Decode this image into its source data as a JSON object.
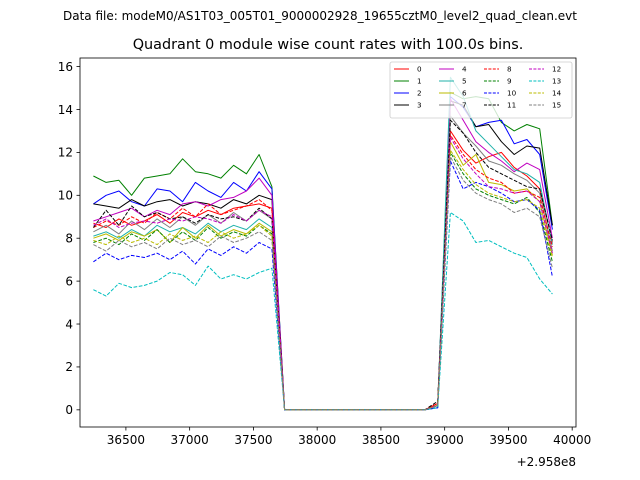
{
  "chart_data": {
    "type": "line",
    "suptitle": "Data file: modeM0/AS1T03_005T01_9000002928_19655cztM0_level2_quad_clean.evt",
    "title": "Quadrant 0 module wise count rates with 100.0s bins.",
    "xlabel": "",
    "ylabel": "",
    "x_offset_label": "+2.958e8",
    "xlim": [
      36140,
      40030
    ],
    "ylim": [
      -0.8,
      16.4
    ],
    "xticks": [
      36500,
      37000,
      37500,
      38000,
      38500,
      39000,
      39500,
      40000
    ],
    "yticks": [
      0,
      2,
      4,
      6,
      8,
      10,
      12,
      14,
      16
    ],
    "grid": false,
    "legend_position": "top-right",
    "x": [
      36245,
      36345,
      36445,
      36545,
      36645,
      36745,
      36845,
      36945,
      37045,
      37145,
      37245,
      37345,
      37445,
      37545,
      37645,
      37745,
      37845,
      37945,
      38045,
      38145,
      38245,
      38345,
      38445,
      38545,
      38645,
      38745,
      38845,
      38945,
      39045,
      39145,
      39245,
      39345,
      39445,
      39545,
      39645,
      39745,
      39845
    ],
    "series": [
      {
        "name": "0",
        "color": "#ff0000",
        "dash": "solid",
        "values": [
          8.7,
          8.5,
          8.9,
          8.6,
          8.8,
          9.1,
          8.7,
          9.2,
          9.0,
          9.3,
          9.1,
          9.4,
          9.5,
          9.6,
          9.4,
          0,
          0,
          0,
          0,
          0,
          0,
          0,
          0,
          0,
          0,
          0,
          0,
          0.3,
          13.0,
          12.1,
          11.5,
          11.8,
          12.0,
          11.3,
          10.9,
          10.3,
          7.8
        ]
      },
      {
        "name": "1",
        "color": "#008000",
        "dash": "solid",
        "values": [
          10.9,
          10.6,
          10.7,
          10.0,
          10.8,
          10.9,
          11.0,
          11.7,
          11.1,
          11.0,
          10.8,
          11.4,
          11.0,
          11.9,
          10.4,
          0,
          0,
          0,
          0,
          0,
          0,
          0,
          0,
          0,
          0,
          0,
          0,
          0.2,
          14.8,
          14.5,
          14.6,
          14.5,
          13.4,
          13.0,
          13.3,
          13.1,
          8.6
        ]
      },
      {
        "name": "2",
        "color": "#0000ff",
        "dash": "solid",
        "values": [
          9.6,
          10.0,
          10.2,
          9.7,
          9.5,
          10.3,
          10.2,
          9.7,
          10.6,
          10.2,
          9.9,
          10.6,
          10.2,
          11.1,
          10.3,
          0,
          0,
          0,
          0,
          0,
          0,
          0,
          0,
          0,
          0,
          0,
          0,
          0.1,
          14.6,
          14.1,
          13.2,
          13.4,
          13.5,
          12.4,
          12.6,
          11.9,
          8.4
        ]
      },
      {
        "name": "3",
        "color": "#000000",
        "dash": "solid",
        "values": [
          9.6,
          9.5,
          9.4,
          9.8,
          9.5,
          9.7,
          9.8,
          9.5,
          9.7,
          9.6,
          9.4,
          9.8,
          9.6,
          10.0,
          9.8,
          0,
          0,
          0,
          0,
          0,
          0,
          0,
          0,
          0,
          0,
          0,
          0,
          0.2,
          14.4,
          14.2,
          13.2,
          13.3,
          12.5,
          11.9,
          12.3,
          12.2,
          8.6
        ]
      },
      {
        "name": "4",
        "color": "#c000c0",
        "dash": "solid",
        "values": [
          8.8,
          9.0,
          9.2,
          9.4,
          9.0,
          9.3,
          9.1,
          9.6,
          9.7,
          9.5,
          9.8,
          9.9,
          10.2,
          10.8,
          10.0,
          0,
          0,
          0,
          0,
          0,
          0,
          0,
          0,
          0,
          0,
          0,
          0,
          0.2,
          14.5,
          13.5,
          12.5,
          12.0,
          11.6,
          11.1,
          11.5,
          11.2,
          8.0
        ]
      },
      {
        "name": "5",
        "color": "#20b2aa",
        "dash": "solid",
        "values": [
          8.1,
          8.3,
          8.0,
          8.4,
          8.1,
          8.6,
          8.3,
          8.5,
          8.2,
          8.7,
          8.3,
          8.6,
          8.4,
          8.9,
          8.5,
          0,
          0,
          0,
          0,
          0,
          0,
          0,
          0,
          0,
          0,
          0,
          0,
          0.2,
          15.5,
          14.6,
          13.0,
          12.4,
          11.8,
          11.2,
          11.0,
          10.6,
          7.7
        ]
      },
      {
        "name": "6",
        "color": "#bbbb00",
        "dash": "solid",
        "values": [
          8.0,
          8.2,
          7.9,
          8.3,
          8.1,
          8.4,
          7.8,
          8.5,
          8.0,
          8.6,
          8.1,
          8.4,
          8.2,
          8.7,
          8.3,
          0,
          0,
          0,
          0,
          0,
          0,
          0,
          0,
          0,
          0,
          0,
          0,
          0.2,
          12.5,
          11.4,
          11.9,
          10.6,
          10.5,
          10.2,
          10.3,
          9.7,
          7.2
        ]
      },
      {
        "name": "7",
        "color": "#808080",
        "dash": "solid",
        "values": [
          8.3,
          8.6,
          8.2,
          8.8,
          8.4,
          8.9,
          8.5,
          9.0,
          8.6,
          9.1,
          8.7,
          9.2,
          8.8,
          9.3,
          8.9,
          0,
          0,
          0,
          0,
          0,
          0,
          0,
          0,
          0,
          0,
          0,
          0,
          0.2,
          13.7,
          12.9,
          12.3,
          11.6,
          11.4,
          11.0,
          10.7,
          10.1,
          7.4
        ]
      },
      {
        "name": "8",
        "color": "#ff0000",
        "dash": "dashed",
        "values": [
          8.5,
          8.8,
          8.6,
          9.0,
          8.7,
          9.2,
          8.9,
          9.4,
          9.0,
          9.6,
          9.1,
          9.3,
          9.5,
          9.8,
          9.3,
          0,
          0,
          0,
          0,
          0,
          0,
          0,
          0,
          0,
          0,
          0,
          0,
          0.3,
          12.8,
          11.9,
          11.2,
          10.8,
          10.6,
          10.1,
          10.2,
          9.9,
          7.6
        ]
      },
      {
        "name": "9",
        "color": "#008000",
        "dash": "dashed",
        "values": [
          7.8,
          8.0,
          7.7,
          8.2,
          7.9,
          8.4,
          7.8,
          8.3,
          7.9,
          8.5,
          8.0,
          8.3,
          8.1,
          8.6,
          8.2,
          0,
          0,
          0,
          0,
          0,
          0,
          0,
          0,
          0,
          0,
          0,
          0,
          0.2,
          12.0,
          11.0,
          10.3,
          10.0,
          9.8,
          9.6,
          9.9,
          9.2,
          6.9
        ]
      },
      {
        "name": "10",
        "color": "#0000ff",
        "dash": "dashed",
        "values": [
          6.9,
          7.3,
          7.0,
          7.2,
          7.1,
          7.3,
          7.0,
          7.4,
          6.8,
          7.5,
          7.2,
          7.6,
          7.3,
          7.8,
          7.5,
          0,
          0,
          0,
          0,
          0,
          0,
          0,
          0,
          0,
          0,
          0,
          0,
          0.1,
          11.6,
          10.3,
          10.6,
          10.4,
          10.1,
          9.7,
          9.8,
          9.3,
          6.2
        ]
      },
      {
        "name": "11",
        "color": "#000000",
        "dash": "dashed",
        "values": [
          8.5,
          9.3,
          8.6,
          9.5,
          9.0,
          9.2,
          8.9,
          9.0,
          8.7,
          9.1,
          8.9,
          9.0,
          8.8,
          9.4,
          8.9,
          0,
          0,
          0,
          0,
          0,
          0,
          0,
          0,
          0,
          0,
          0,
          0,
          0.4,
          13.5,
          12.9,
          12.0,
          11.3,
          11.0,
          10.7,
          10.4,
          10.3,
          7.9
        ]
      },
      {
        "name": "12",
        "color": "#c000c0",
        "dash": "dashed",
        "values": [
          8.6,
          8.9,
          8.5,
          8.7,
          8.8,
          8.7,
          8.9,
          8.8,
          9.0,
          8.9,
          8.7,
          9.1,
          8.8,
          9.3,
          9.0,
          0,
          0,
          0,
          0,
          0,
          0,
          0,
          0,
          0,
          0,
          0,
          0,
          0.2,
          12.7,
          11.7,
          11.0,
          10.4,
          10.3,
          10.1,
          10.2,
          9.7,
          7.3
        ]
      },
      {
        "name": "13",
        "color": "#00bfbf",
        "dash": "dashed",
        "values": [
          5.6,
          5.3,
          5.9,
          5.7,
          5.8,
          6.0,
          6.4,
          6.3,
          5.8,
          6.7,
          6.1,
          6.3,
          6.1,
          6.4,
          6.6,
          0,
          0,
          0,
          0,
          0,
          0,
          0,
          0,
          0,
          0,
          0,
          0,
          0.1,
          9.2,
          8.8,
          7.8,
          7.9,
          7.6,
          7.3,
          7.1,
          6.1,
          5.4
        ]
      },
      {
        "name": "14",
        "color": "#bbbb00",
        "dash": "dashed",
        "values": [
          7.9,
          7.7,
          8.1,
          7.8,
          8.0,
          7.7,
          8.2,
          7.9,
          8.1,
          7.8,
          8.3,
          8.0,
          8.2,
          8.6,
          8.1,
          0,
          0,
          0,
          0,
          0,
          0,
          0,
          0,
          0,
          0,
          0,
          0,
          0.2,
          12.1,
          11.2,
          10.5,
          10.1,
          9.9,
          9.7,
          9.8,
          9.4,
          7.1
        ]
      },
      {
        "name": "15",
        "color": "#808080",
        "dash": "dashed",
        "values": [
          7.7,
          7.4,
          7.9,
          7.6,
          7.8,
          7.5,
          8.0,
          7.7,
          7.9,
          7.6,
          8.1,
          7.8,
          8.0,
          8.3,
          7.9,
          0,
          0,
          0,
          0,
          0,
          0,
          0,
          0,
          0,
          0,
          0,
          0,
          0.2,
          11.8,
          10.7,
          10.1,
          9.8,
          9.6,
          9.2,
          9.4,
          9.0,
          6.6
        ]
      }
    ]
  }
}
